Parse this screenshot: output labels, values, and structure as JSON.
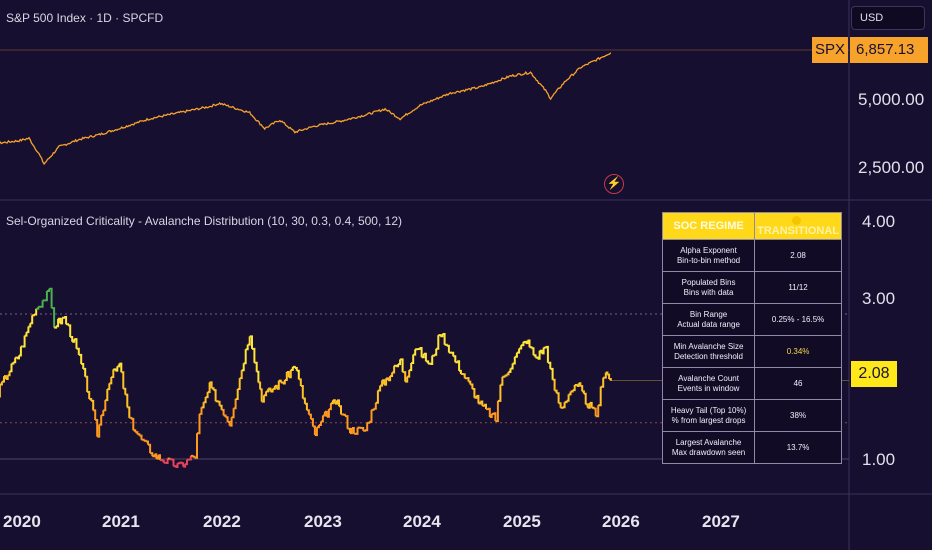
{
  "header": {
    "title": "S&P 500 Index · 1D · SPCFD",
    "currency": "USD"
  },
  "price_pane": {
    "symbol": "SPX",
    "last": "6,857.13",
    "axis_labels": [
      "5,000.00",
      "2,500.00"
    ],
    "line_color": "#f7a22a"
  },
  "indicator_pane": {
    "title": "Sel-Organized Criticality - Avalanche Distribution (10, 30, 0.3, 0.4, 500, 12)",
    "last": "2.08",
    "axis_labels": [
      "4.00",
      "3.00",
      "1.00"
    ]
  },
  "x_axis": {
    "years": [
      "2020",
      "2021",
      "2022",
      "2023",
      "2024",
      "2025",
      "2026",
      "2027"
    ]
  },
  "soc_table": {
    "header": {
      "label": "SOC REGIME",
      "value": "TRANSITIONAL"
    },
    "rows": [
      {
        "label1": "Alpha Exponent",
        "label2": "Bin-to-bin method",
        "value": "2.08"
      },
      {
        "label1": "Populated Bins",
        "label2": "Bins with data",
        "value": "11/12"
      },
      {
        "label1": "Bin Range",
        "label2": "Actual data range",
        "value": "0.25% - 16.5%"
      },
      {
        "label1": "Min Avalanche Size",
        "label2": "Detection threshold",
        "value": "0.34%"
      },
      {
        "label1": "Avalanche Count",
        "label2": "Events in window",
        "value": "46"
      },
      {
        "label1": "Heavy Tail (Top 10%)",
        "label2": "% from largest drops",
        "value": "38%"
      },
      {
        "label1": "Largest Avalanche",
        "label2": "Max drawdown seen",
        "value": "13.7%"
      }
    ]
  },
  "chart_data": [
    {
      "type": "line",
      "title": "S&P 500 Index · 1D · SPCFD",
      "series": [
        {
          "name": "SPX",
          "x": [
            2019.5,
            2019.8,
            2020.0,
            2020.1,
            2020.2,
            2020.25,
            2020.4,
            2020.6,
            2020.8,
            2021.0,
            2021.3,
            2021.6,
            2021.9,
            2022.0,
            2022.3,
            2022.45,
            2022.6,
            2022.75,
            2022.95,
            2023.2,
            2023.45,
            2023.65,
            2023.8,
            2024.0,
            2024.3,
            2024.6,
            2024.9,
            2025.1,
            2025.25,
            2025.3,
            2025.45,
            2025.6,
            2025.8,
            2025.9
          ],
          "values": [
            2950,
            3150,
            3250,
            3350,
            2700,
            2300,
            3000,
            3300,
            3500,
            3750,
            4150,
            4400,
            4650,
            4780,
            4400,
            3750,
            4100,
            3600,
            3850,
            4050,
            4300,
            4550,
            4150,
            4700,
            5200,
            5450,
            5900,
            6050,
            5300,
            4990,
            5700,
            6250,
            6650,
            6857
          ]
        }
      ],
      "ylabels": [
        "5,000.00",
        "2,500.00"
      ],
      "last": "6,857.13"
    },
    {
      "type": "line",
      "title": "Sel-Organized Criticality - Avalanche Distribution (10, 30, 0.3, 0.4, 500, 12)",
      "series": [
        {
          "name": "Alpha Exponent",
          "x": [
            2019.5,
            2019.6,
            2019.75,
            2019.85,
            2020.0,
            2020.15,
            2020.3,
            2020.35,
            2020.45,
            2020.55,
            2020.62,
            2020.72,
            2020.78,
            2020.9,
            2021.0,
            2021.1,
            2021.2,
            2021.35,
            2021.5,
            2021.6,
            2021.75,
            2021.8,
            2021.9,
            2022.1,
            2022.3,
            2022.37,
            2022.42,
            2022.55,
            2022.65,
            2022.75,
            2022.85,
            2022.95,
            2023.05,
            2023.15,
            2023.25,
            2023.3,
            2023.45,
            2023.6,
            2023.8,
            2023.85,
            2023.95,
            2024.1,
            2024.2,
            2024.35,
            2024.5,
            2024.6,
            2024.75,
            2024.8,
            2024.9,
            2025.05,
            2025.15,
            2025.25,
            2025.32,
            2025.4,
            2025.5,
            2025.58,
            2025.65,
            2025.75,
            2025.8,
            2025.85,
            2025.9
          ],
          "values": [
            2.3,
            2.0,
            1.8,
            2.1,
            2.45,
            3.05,
            3.3,
            2.85,
            2.95,
            2.6,
            2.3,
            1.75,
            1.35,
            2.1,
            2.3,
            1.55,
            1.3,
            1.05,
            0.95,
            0.9,
            1.05,
            1.6,
            2.0,
            1.5,
            2.75,
            2.2,
            1.85,
            2.0,
            2.1,
            2.3,
            1.75,
            1.35,
            1.6,
            1.8,
            1.55,
            1.4,
            1.4,
            2.0,
            2.35,
            2.1,
            2.55,
            2.3,
            2.75,
            2.35,
            2.0,
            1.75,
            1.55,
            2.05,
            2.3,
            2.65,
            2.4,
            2.55,
            2.05,
            1.7,
            1.95,
            2.0,
            1.8,
            1.6,
            1.95,
            2.25,
            2.08
          ]
        }
      ],
      "ylabels": [
        "4.00",
        "3.00",
        "1.00"
      ],
      "last": "2.08"
    }
  ]
}
